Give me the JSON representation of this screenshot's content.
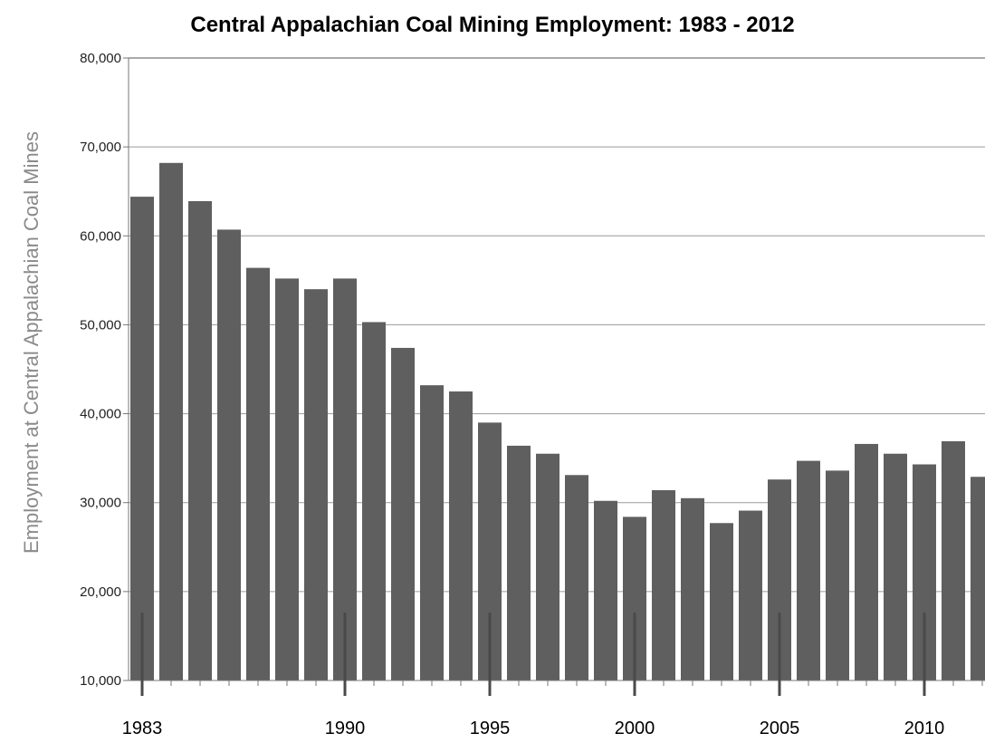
{
  "chart_data": {
    "type": "bar",
    "title": "Central Appalachian Coal Mining Employment: 1983 - 2012",
    "xlabel": "",
    "ylabel": "Employment at Central Appalachian Coal Mines",
    "ylim": [
      10000,
      80000
    ],
    "yticks": [
      "10,000",
      "20,000",
      "30,000",
      "40,000",
      "50,000",
      "60,000",
      "70,000",
      "80,000"
    ],
    "xtick_labels": [
      "1983",
      "1990",
      "1995",
      "2000",
      "2005",
      "2010"
    ],
    "grid": true,
    "colors": {
      "bar": "#5f5f5f",
      "grid": "#9a9a9a",
      "axis": "#777777",
      "ylabel": "#8a8a8a"
    },
    "categories": [
      1983,
      1984,
      1985,
      1986,
      1987,
      1988,
      1989,
      1990,
      1991,
      1992,
      1993,
      1994,
      1995,
      1996,
      1997,
      1998,
      1999,
      2000,
      2001,
      2002,
      2003,
      2004,
      2005,
      2006,
      2007,
      2008,
      2009,
      2010,
      2011,
      2012
    ],
    "values": [
      64400,
      68200,
      63900,
      60700,
      56400,
      55200,
      54000,
      55200,
      50300,
      47400,
      43200,
      42500,
      39000,
      36400,
      35500,
      33100,
      30200,
      28400,
      31400,
      30500,
      27700,
      29100,
      32600,
      34700,
      33600,
      36600,
      35500,
      34300,
      36900,
      32900
    ]
  }
}
